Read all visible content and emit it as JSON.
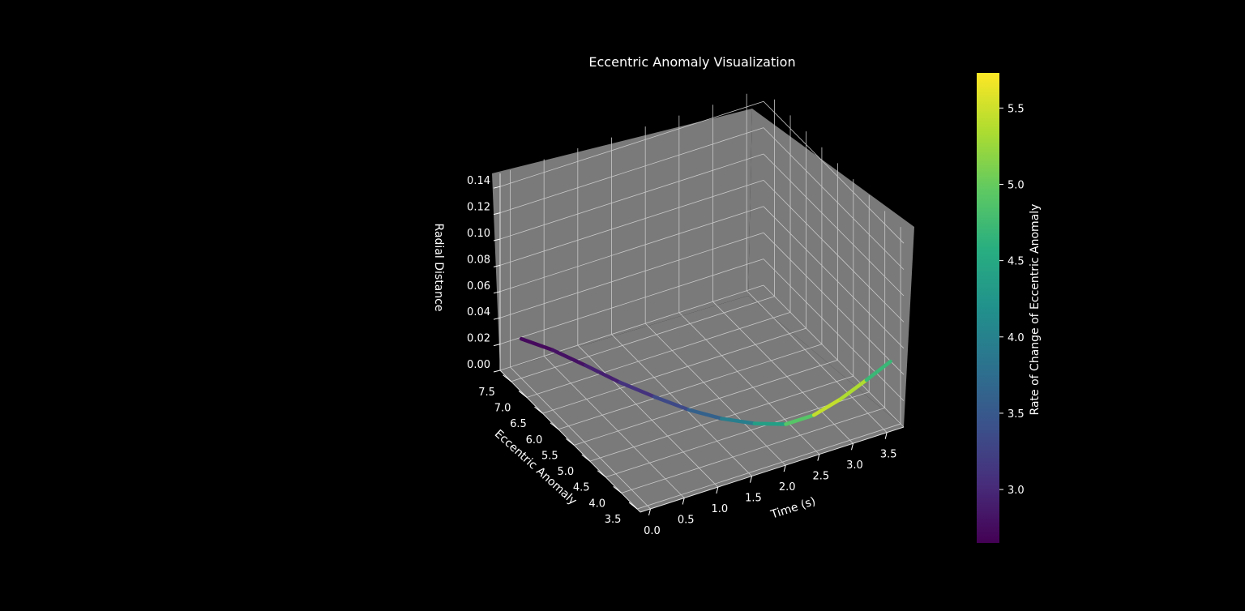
{
  "chart_data": {
    "type": "line3d",
    "title": "Eccentric Anomaly Visualization",
    "xlabel": "Time (s)",
    "ylabel": "Eccentric Anomaly",
    "zlabel": "Radial Distance",
    "xlim": [
      -0.15,
      3.75
    ],
    "ylim": [
      3.4,
      7.85
    ],
    "zlim": [
      0,
      0.15
    ],
    "xticks": [
      "0.0",
      "0.5",
      "1.0",
      "1.5",
      "2.0",
      "2.5",
      "3.0",
      "3.5"
    ],
    "yticks": [
      "3.5",
      "4.0",
      "4.5",
      "5.0",
      "5.5",
      "6.0",
      "6.5",
      "7.0",
      "7.5"
    ],
    "zticks": [
      "0.00",
      "0.02",
      "0.04",
      "0.06",
      "0.08",
      "0.10",
      "0.12",
      "0.14"
    ],
    "series": [
      {
        "x": [
          0.0,
          0.3,
          0.6,
          0.9,
          1.2,
          1.5,
          1.8,
          2.1,
          2.4,
          2.7,
          3.0,
          3.3,
          3.6
        ],
        "y": [
          7.5,
          7.15,
          6.75,
          6.3,
          5.85,
          5.4,
          5.0,
          4.6,
          4.25,
          4.0,
          3.8,
          3.62,
          3.5
        ],
        "z": [
          0.03,
          0.025,
          0.018,
          0.011,
          0.006,
          0.002,
          0.0,
          0.001,
          0.004,
          0.012,
          0.024,
          0.038,
          0.05
        ],
        "color_value": [
          2.7,
          2.75,
          2.85,
          3.0,
          3.2,
          3.45,
          3.75,
          4.15,
          4.6,
          5.2,
          5.7,
          5.0,
          4.4
        ]
      }
    ],
    "colorbar": {
      "label": "Rate of Change of Eccentric Anomaly",
      "range": [
        2.65,
        5.73
      ],
      "ticks": [
        "3.0",
        "3.5",
        "4.0",
        "4.5",
        "5.0",
        "5.5"
      ],
      "colormap": "viridis"
    },
    "grid": true,
    "pane_color": "#7a7a7a",
    "background_color": "#000000",
    "grid_color": "#c8c8c8"
  }
}
